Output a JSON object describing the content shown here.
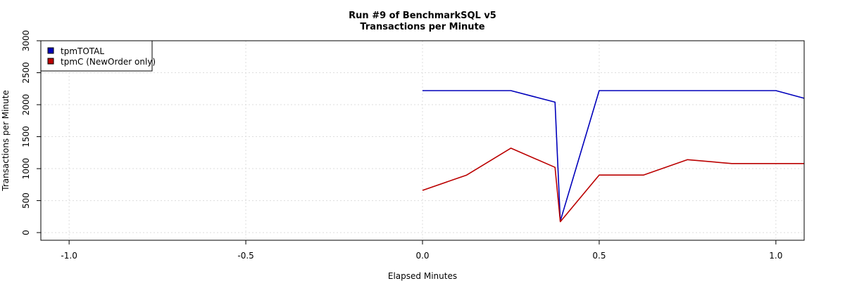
{
  "chart_data": {
    "type": "line",
    "title": "Run #9 of BenchmarkSQL v5",
    "subtitle": "Transactions per Minute",
    "xlabel": "Elapsed Minutes",
    "ylabel": "Transactions per Minute",
    "xlim": [
      -1.08,
      1.08
    ],
    "ylim": [
      -120,
      3000
    ],
    "x_ticks": [
      -1.0,
      -0.5,
      0.0,
      0.5,
      1.0
    ],
    "x_tick_labels": [
      "-1.0",
      "-0.5",
      "0.0",
      "0.5",
      "1.0"
    ],
    "y_ticks": [
      0,
      500,
      1000,
      1500,
      2000,
      2500,
      3000
    ],
    "y_tick_labels": [
      "0",
      "500",
      "1000",
      "1500",
      "2000",
      "2500",
      "3000"
    ],
    "grid": true,
    "legend_position": "top-left",
    "series": [
      {
        "name": "tpmTOTAL",
        "color": "#0000bb",
        "x": [
          0.0,
          0.25,
          0.3125,
          0.375,
          0.39,
          0.5,
          0.625,
          0.75,
          0.875,
          1.0,
          1.08
        ],
        "y": [
          2220,
          2220,
          2130,
          2040,
          180,
          2220,
          2220,
          2220,
          2220,
          2220,
          2100
        ]
      },
      {
        "name": "tpmC (NewOrder only)",
        "color": "#bb0000",
        "x": [
          0.0,
          0.125,
          0.25,
          0.375,
          0.39,
          0.5,
          0.625,
          0.75,
          0.875,
          1.0,
          1.08
        ],
        "y": [
          660,
          900,
          1320,
          1020,
          170,
          900,
          900,
          1140,
          1080,
          1080,
          1080
        ]
      }
    ]
  }
}
